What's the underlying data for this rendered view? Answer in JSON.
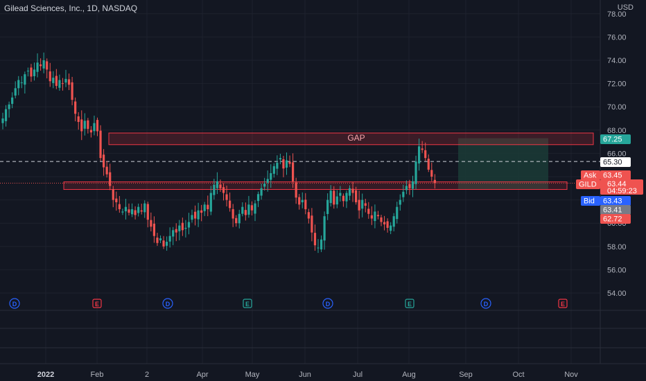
{
  "header": {
    "title": "Gilead Sciences, Inc., 1D, NASDAQ",
    "currency": "USD"
  },
  "colors": {
    "background": "#131722",
    "up": "#26a69a",
    "down": "#ef5350",
    "grid": "#1e222d",
    "zone": "#f23645",
    "target": "#1b3b36",
    "bid": "#2962ff"
  },
  "chart_data": {
    "type": "candlestick",
    "ylim": [
      53,
      79.5
    ],
    "yticks": [
      "54.00",
      "56.00",
      "58.00",
      "60.00",
      "62.00",
      "64.00",
      "66.00",
      "68.00",
      "70.00",
      "72.00",
      "74.00",
      "76.00",
      "78.00"
    ],
    "xlabels": [
      "2022",
      "Feb",
      "2",
      "Apr",
      "May",
      "Jun",
      "Jul",
      "Aug",
      "Sep",
      "Oct",
      "Nov"
    ],
    "zones": [
      {
        "label": "GAP",
        "top": 67.75,
        "bottom": 66.75
      },
      {
        "label": "",
        "top": 63.55,
        "bottom": 62.9
      }
    ],
    "dashed_level": {
      "price": 65.3,
      "label": "65.30"
    },
    "target_box": {
      "top": 67.3,
      "bottom": 62.9
    },
    "price_tags": {
      "gap": "67.25",
      "ask_label": "Ask",
      "ask": "63.45",
      "symbol": "GILD",
      "last": "63.44",
      "countdown": "04:59:23",
      "bid_label": "Bid",
      "bid": "63.43",
      "mid": "63.41",
      "low": "62.72"
    },
    "events": [
      {
        "type": "D"
      },
      {
        "type": "E"
      },
      {
        "type": "D"
      },
      {
        "type": "E"
      },
      {
        "type": "D"
      },
      {
        "type": "E"
      },
      {
        "type": "D"
      },
      {
        "type": "E"
      }
    ],
    "closes": [
      69.0,
      69.8,
      70.2,
      70.8,
      71.6,
      72.3,
      72.1,
      72.8,
      73.1,
      72.6,
      73.2,
      73.8,
      73.5,
      74.0,
      73.2,
      72.2,
      72.5,
      71.8,
      72.3,
      72.0,
      72.4,
      71.9,
      70.6,
      69.4,
      68.7,
      67.9,
      68.8,
      68.1,
      67.8,
      68.6,
      67.9,
      65.6,
      64.8,
      64.2,
      63.2,
      62.0,
      61.8,
      61.2,
      61.0,
      61.4,
      60.9,
      61.2,
      60.7,
      61.4,
      61.0,
      61.7,
      60.3,
      59.7,
      58.9,
      58.3,
      58.7,
      58.0,
      58.4,
      58.9,
      59.4,
      59.2,
      59.8,
      59.4,
      59.6,
      60.1,
      60.7,
      60.4,
      61.1,
      60.9,
      61.6,
      61.2,
      62.6,
      63.3,
      63.6,
      63.0,
      62.6,
      62.0,
      61.3,
      60.4,
      60.0,
      60.8,
      61.4,
      60.7,
      61.6,
      61.1,
      61.7,
      62.5,
      63.0,
      63.4,
      63.8,
      64.3,
      64.9,
      65.2,
      65.6,
      64.7,
      65.4,
      65.1,
      63.6,
      62.2,
      61.6,
      62.0,
      61.2,
      60.4,
      59.2,
      58.1,
      57.9,
      58.6,
      60.6,
      62.0,
      62.8,
      61.6,
      62.3,
      62.6,
      61.9,
      62.6,
      63.0,
      62.6,
      61.8,
      61.1,
      62.0,
      61.5,
      60.8,
      60.4,
      61.0,
      60.6,
      60.1,
      59.9,
      59.6,
      59.8,
      60.6,
      61.4,
      62.0,
      62.7,
      63.2,
      63.0,
      63.6,
      65.3,
      66.6,
      66.3,
      65.6,
      64.6,
      64.0,
      63.44
    ]
  }
}
